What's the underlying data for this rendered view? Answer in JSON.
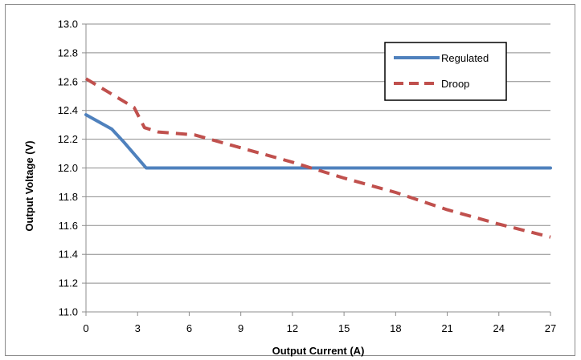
{
  "chart_data": {
    "type": "line",
    "title": "",
    "xlabel": "Output Current (A)",
    "ylabel": "Output Voltage (V)",
    "xlim": [
      0,
      27
    ],
    "ylim": [
      11.0,
      13.0
    ],
    "x_ticks": [
      0,
      3,
      6,
      9,
      12,
      15,
      18,
      21,
      24,
      27
    ],
    "y_ticks": [
      11.0,
      11.2,
      11.4,
      11.6,
      11.8,
      12.0,
      12.2,
      12.4,
      12.6,
      12.8,
      13.0
    ],
    "x_tick_labels": [
      "0",
      "3",
      "6",
      "9",
      "12",
      "15",
      "18",
      "21",
      "24",
      "27"
    ],
    "y_tick_labels": [
      "11.0",
      "11.2",
      "11.4",
      "11.6",
      "11.8",
      "12.0",
      "12.2",
      "12.4",
      "12.6",
      "12.8",
      "13.0"
    ],
    "grid": "horizontal",
    "legend_position": "top-right",
    "series": [
      {
        "name": "Regulated",
        "color": "#4f81bd",
        "style": "solid",
        "x": [
          0,
          1.5,
          2.2,
          3.5,
          27
        ],
        "y": [
          12.37,
          12.27,
          12.18,
          12.0,
          12.0
        ]
      },
      {
        "name": "Droop",
        "color": "#c0504d",
        "style": "dashed",
        "x": [
          0,
          2.8,
          3.4,
          4.2,
          6.3,
          9.0,
          12.0,
          15.0,
          18.0,
          21.0,
          24.0,
          27.0
        ],
        "y": [
          12.62,
          12.42,
          12.28,
          12.25,
          12.23,
          12.14,
          12.04,
          11.93,
          11.83,
          11.71,
          11.61,
          11.52
        ]
      }
    ]
  }
}
